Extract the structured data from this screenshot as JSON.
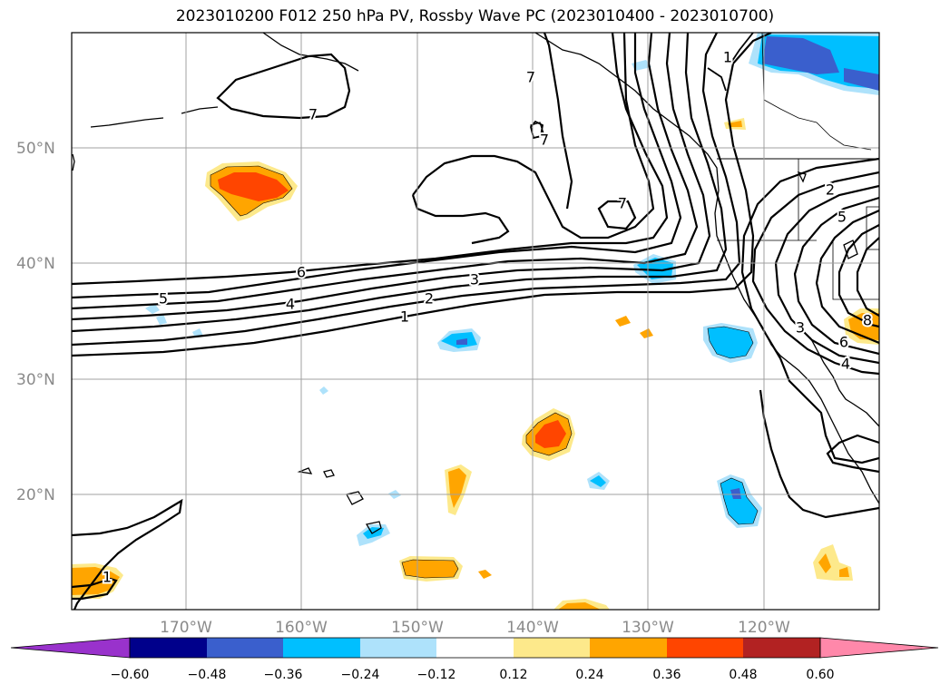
{
  "title": "2023010200 F012 250 hPa PV, Rossby Wave PC (2023010400 - 2023010700)",
  "axes": {
    "lat_labels": [
      "50°N",
      "40°N",
      "30°N",
      "20°N"
    ],
    "lon_labels": [
      "170°W",
      "160°W",
      "150°W",
      "140°W",
      "130°W",
      "120°W"
    ]
  },
  "contour_labels": {
    "seven_a": "7",
    "seven_b": "7",
    "seven_c": "7",
    "seven_d": "7",
    "one_ne": "1",
    "six": "6",
    "four": "4",
    "three": "3",
    "two": "2",
    "one": "1",
    "five_w": "5",
    "two_e": "2",
    "five_e": "5",
    "three_e": "3",
    "six_e": "6",
    "four_e": "4",
    "eight_e": "8",
    "one_sw": "1"
  },
  "colorbar": {
    "ticks": [
      "−0.60",
      "−0.48",
      "−0.36",
      "−0.24",
      "−0.12",
      "0.12",
      "0.24",
      "0.36",
      "0.48",
      "0.60"
    ],
    "colors": [
      "#9932cc",
      "#00008b",
      "#3a5fcd",
      "#00bfff",
      "#aee2fb",
      "#ffffff",
      "#fde98b",
      "#ffa500",
      "#ff4500",
      "#b22222",
      "#ff88aa"
    ]
  }
}
